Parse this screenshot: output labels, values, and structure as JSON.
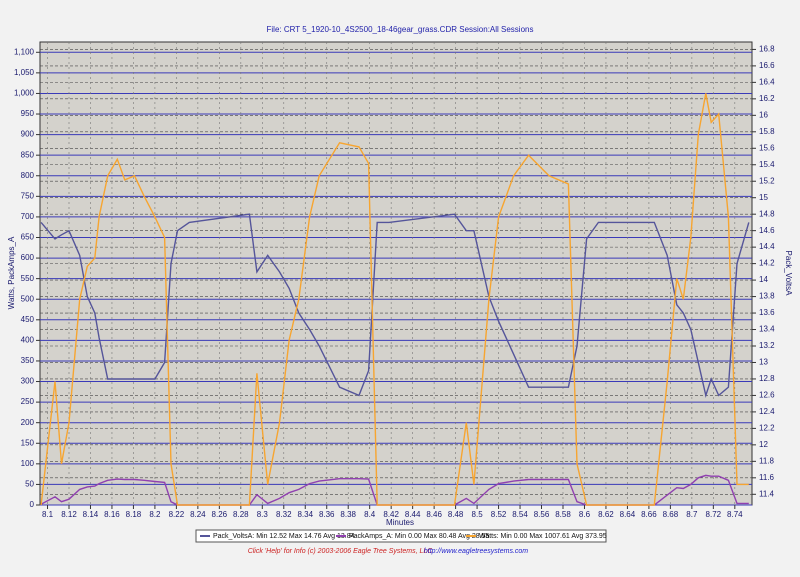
{
  "chart_data": {
    "type": "line",
    "title": "File: CRT  5_1920-10_4S2500_18-46gear_grass.CDR   Session:All Sessions",
    "xlabel": "Minutes",
    "ylabel": "Watts, PackAmps_A",
    "y2label": "Pack_VoltsA",
    "x": [
      8.094,
      8.107,
      8.113,
      8.12,
      8.13,
      8.137,
      8.144,
      8.148,
      8.156,
      8.165,
      8.172,
      8.181,
      8.19,
      8.2,
      8.209,
      8.215,
      8.221,
      8.232,
      8.288,
      8.295,
      8.305,
      8.316,
      8.325,
      8.334,
      8.344,
      8.353,
      8.372,
      8.39,
      8.399,
      8.407,
      8.418,
      8.479,
      8.49,
      8.497,
      8.511,
      8.52,
      8.534,
      8.548,
      8.567,
      8.585,
      8.593,
      8.602,
      8.613,
      8.665,
      8.677,
      8.686,
      8.692,
      8.699,
      8.706,
      8.713,
      8.718,
      8.725,
      8.734,
      8.742,
      8.753
    ],
    "series": [
      {
        "name": "Pack_VoltsA:  Min 12.52 Max 14.76 Avg 13.84",
        "color": "#55559a",
        "axis": "y2",
        "values": [
          14.7,
          14.5,
          14.55,
          14.6,
          14.3,
          13.8,
          13.6,
          13.3,
          12.8,
          12.8,
          12.8,
          12.8,
          12.8,
          12.8,
          13.0,
          14.2,
          14.6,
          14.7,
          14.8,
          14.1,
          14.3,
          14.1,
          13.9,
          13.6,
          13.4,
          13.2,
          12.7,
          12.6,
          12.9,
          14.7,
          14.7,
          14.8,
          14.6,
          14.6,
          13.8,
          13.5,
          13.1,
          12.7,
          12.7,
          12.7,
          13.2,
          14.5,
          14.7,
          14.7,
          14.3,
          13.7,
          13.6,
          13.4,
          13.0,
          12.6,
          12.8,
          12.6,
          12.7,
          14.2,
          14.7
        ]
      },
      {
        "name": "PackAmps_A:  Min 0.00 Max 80.48 Avg 28.55",
        "color": "#9040b0",
        "values": [
          2,
          20,
          8,
          14,
          38,
          44,
          46,
          52,
          60,
          63,
          62,
          62,
          60,
          57,
          55,
          8,
          0,
          0,
          0,
          25,
          4,
          16,
          30,
          38,
          52,
          58,
          64,
          64,
          63,
          0,
          0,
          0,
          16,
          4,
          38,
          52,
          58,
          62,
          62,
          62,
          8,
          0,
          0,
          0,
          24,
          42,
          40,
          50,
          66,
          72,
          70,
          70,
          60,
          4,
          4
        ]
      },
      {
        "name": "Watts:  Min 0.00 Max 1007.61 Avg 373.95",
        "color": "#f7a530",
        "values": [
          0,
          300,
          100,
          200,
          500,
          580,
          600,
          700,
          800,
          840,
          790,
          800,
          750,
          700,
          650,
          100,
          0,
          0,
          0,
          320,
          50,
          200,
          400,
          500,
          700,
          800,
          880,
          870,
          830,
          0,
          0,
          0,
          200,
          50,
          500,
          700,
          800,
          850,
          800,
          780,
          100,
          0,
          0,
          0,
          300,
          550,
          500,
          650,
          900,
          1000,
          930,
          950,
          700,
          50,
          50
        ]
      }
    ],
    "xlim": [
      8.093,
      8.756
    ],
    "xticks": [
      8.1,
      8.12,
      8.14,
      8.16,
      8.18,
      8.2,
      8.22,
      8.24,
      8.26,
      8.28,
      8.3,
      8.32,
      8.34,
      8.36,
      8.38,
      8.4,
      8.42,
      8.44,
      8.46,
      8.48,
      8.5,
      8.52,
      8.54,
      8.56,
      8.58,
      8.6,
      8.62,
      8.64,
      8.66,
      8.68,
      8.7,
      8.72,
      8.74
    ],
    "ylim": [
      0,
      1125
    ],
    "yticks": [
      0,
      50,
      100,
      150,
      200,
      250,
      300,
      350,
      400,
      450,
      500,
      550,
      600,
      650,
      700,
      750,
      800,
      850,
      900,
      950,
      {
        "value": 1000,
        "label": "1,000"
      },
      {
        "value": 1050,
        "label": "1,050"
      },
      {
        "value": 1100,
        "label": "1,100"
      }
    ],
    "y2lim": [
      11.27,
      16.89
    ],
    "y2ticks": [
      11.4,
      11.6,
      11.8,
      12,
      12.2,
      12.4,
      12.6,
      12.8,
      13,
      13.2,
      13.4,
      13.6,
      13.8,
      14,
      14.2,
      14.4,
      14.6,
      14.8,
      15,
      15.2,
      15.4,
      15.6,
      15.8,
      16,
      16.2,
      16.4,
      16.6,
      16.8
    ],
    "grid": true,
    "footer": "Click 'Help' for Info  (c) 2003-2006 Eagle Tree Systems, LLC",
    "footer_url": "http://www.eagletreesystems.com"
  }
}
